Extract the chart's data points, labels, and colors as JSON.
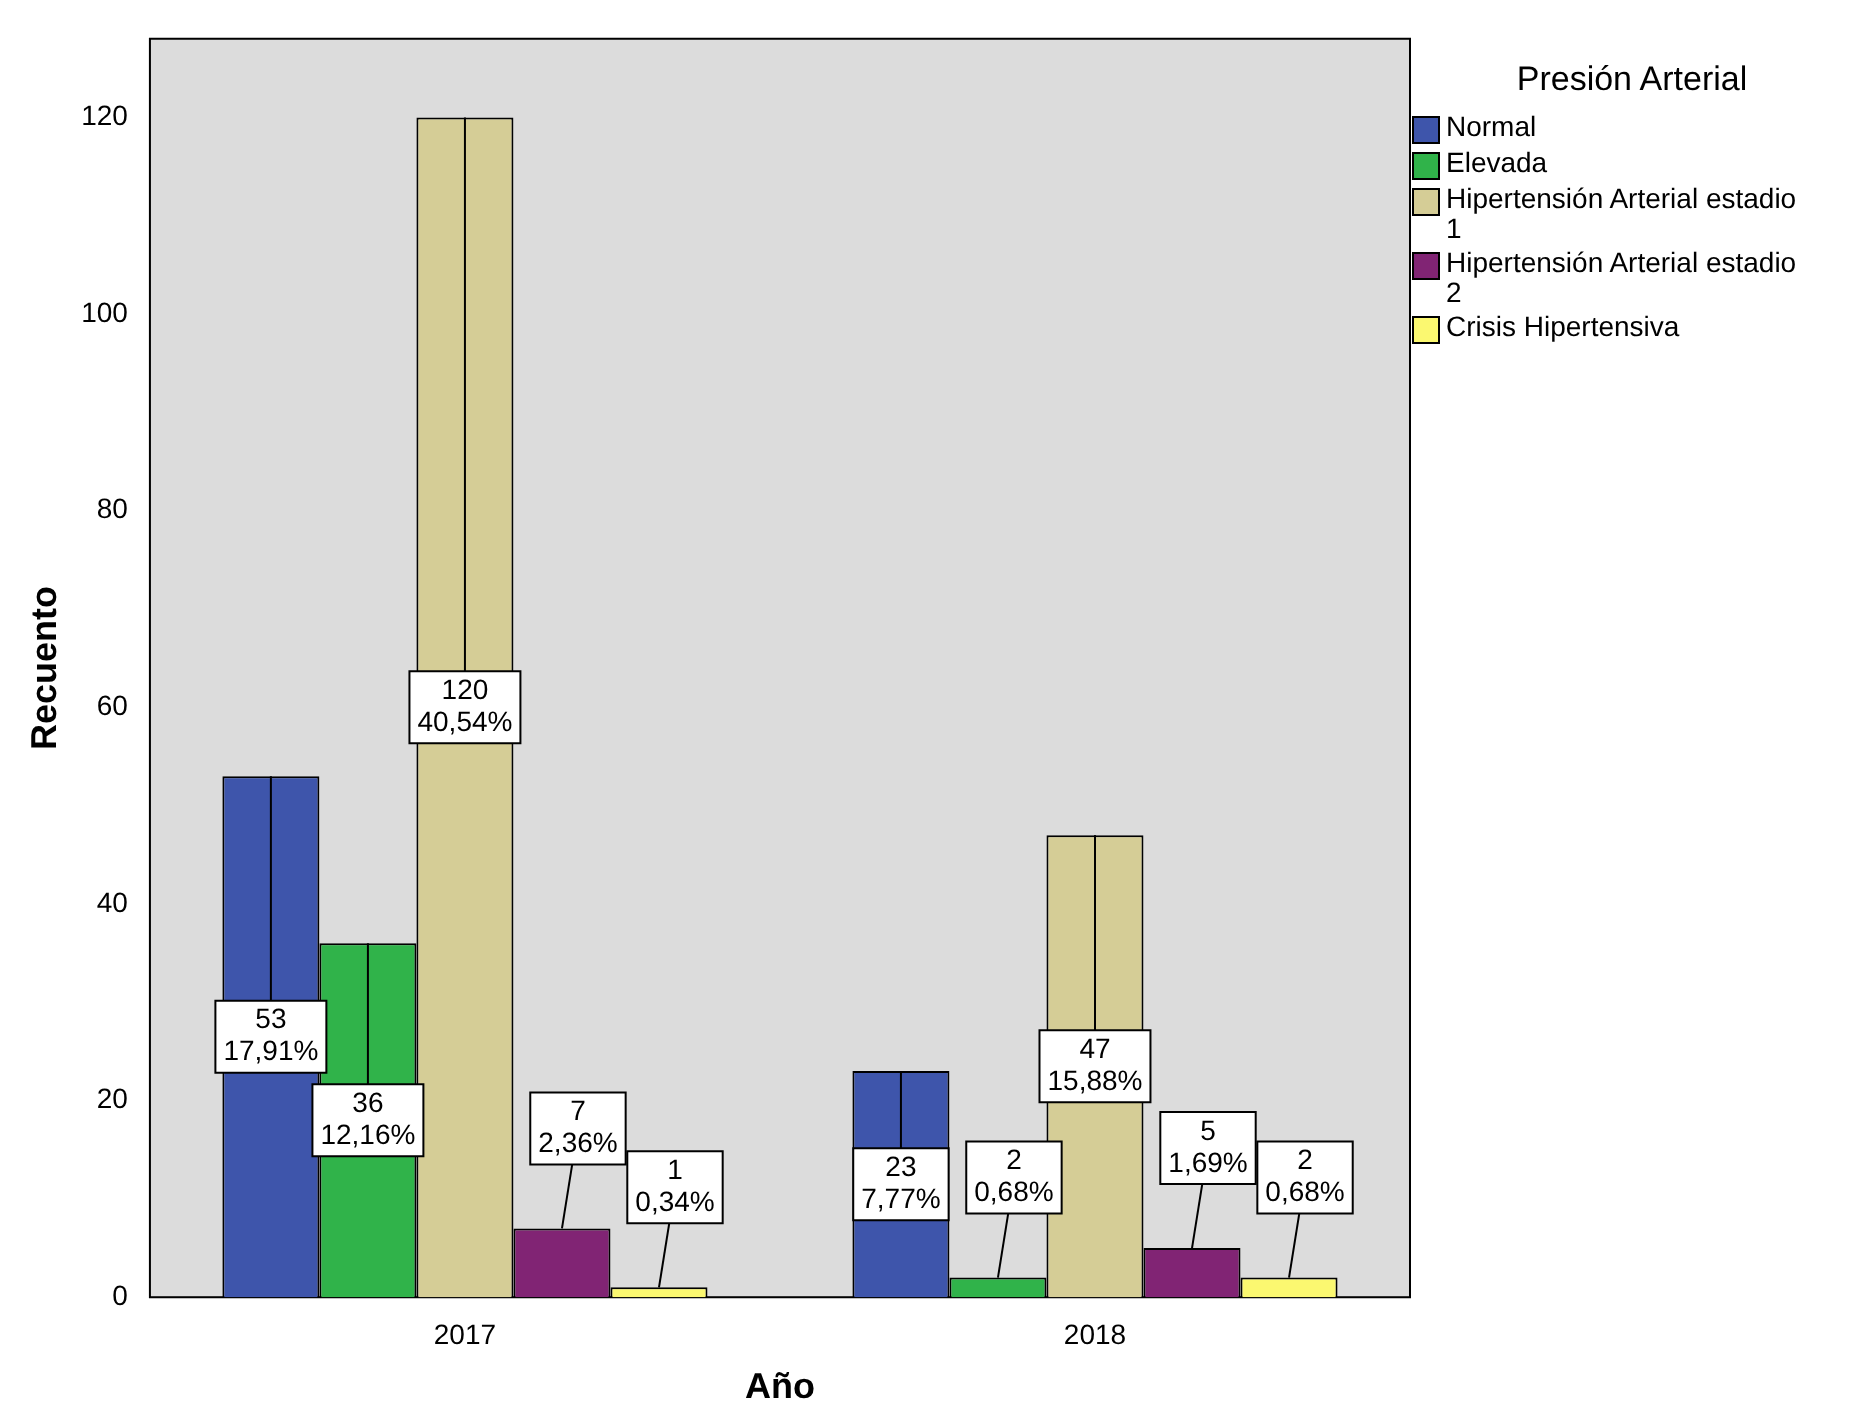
{
  "chart_data": {
    "type": "bar",
    "xlabel": "Año",
    "ylabel": "Recuento",
    "legend_title": "Presión Arterial",
    "categories": [
      "2017",
      "2018"
    ],
    "series": [
      {
        "name": "Normal",
        "color": "#3e55ab",
        "values": [
          53,
          23
        ],
        "value_labels": [
          "53\n17,91%",
          "23\n7,77%"
        ]
      },
      {
        "name": "Elevada",
        "color": "#30b34a",
        "values": [
          36,
          2
        ],
        "value_labels": [
          "36\n12,16%",
          "2\n0,68%"
        ]
      },
      {
        "name": "Hipertensión Arterial estadio 1",
        "color": "#d5cd96",
        "values": [
          120,
          47
        ],
        "value_labels": [
          "120\n40,54%",
          "47\n15,88%"
        ]
      },
      {
        "name": "Hipertensión Arterial estadio 2",
        "color": "#812474",
        "values": [
          7,
          5
        ],
        "value_labels": [
          "7\n2,36%",
          "5\n1,69%"
        ]
      },
      {
        "name": "Crisis Hipertensiva",
        "color": "#fbf870",
        "values": [
          1,
          2
        ],
        "value_labels": [
          "1\n0,34%",
          "2\n0,68%"
        ]
      }
    ],
    "ylim": [
      0,
      128
    ],
    "yticks": [
      0,
      20,
      40,
      60,
      80,
      100,
      120
    ],
    "grid": false,
    "legend": "right"
  }
}
